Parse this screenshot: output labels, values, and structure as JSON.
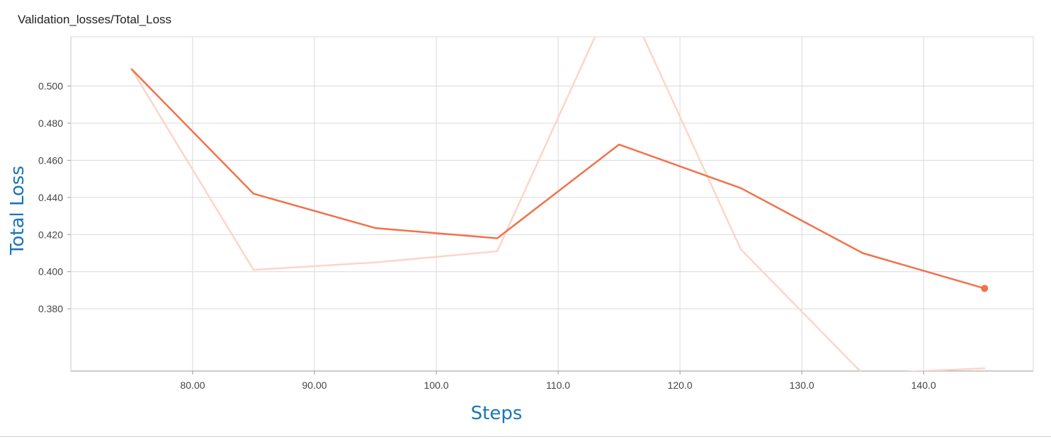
{
  "title": "Validation_losses/Total_Loss",
  "chart_data": {
    "type": "line",
    "title": "Validation_losses/Total_Loss",
    "xlabel": "Steps",
    "ylabel": "Total Loss",
    "xlim": [
      70,
      149
    ],
    "ylim": [
      0.3465,
      0.5265
    ],
    "grid": true,
    "xticks": [
      80,
      90,
      100,
      110,
      120,
      130,
      140
    ],
    "xtick_labels": [
      "80.00",
      "90.00",
      "100.0",
      "110.0",
      "120.0",
      "130.0",
      "140.0"
    ],
    "yticks": [
      0.38,
      0.4,
      0.42,
      0.44,
      0.46,
      0.48,
      0.5
    ],
    "ytick_labels": [
      "0.380",
      "0.400",
      "0.420",
      "0.440",
      "0.460",
      "0.480",
      "0.500"
    ],
    "series": [
      {
        "role": "raw",
        "color": "#fdd5c8",
        "x": [
          75,
          85,
          95,
          105,
          115,
          125,
          135,
          145
        ],
        "y": [
          0.509,
          0.401,
          0.405,
          0.411,
          0.555,
          0.412,
          0.345,
          0.348
        ]
      },
      {
        "role": "smoothed",
        "color": "#f2714a",
        "x": [
          75,
          85,
          95,
          105,
          115,
          125,
          135,
          145
        ],
        "y": [
          0.509,
          0.442,
          0.4235,
          0.418,
          0.4685,
          0.445,
          0.41,
          0.391
        ]
      }
    ]
  }
}
